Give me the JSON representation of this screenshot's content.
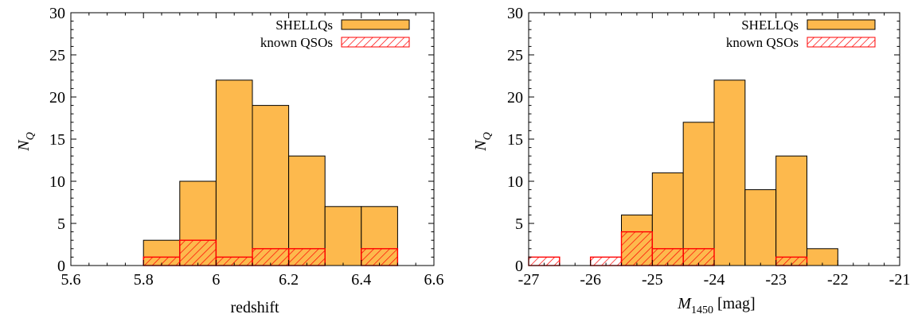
{
  "colors": {
    "shellqs_fill": "#FDB94D",
    "known_qso": "#FF0000",
    "edge": "#000000"
  },
  "chart_data": [
    {
      "type": "bar",
      "xlabel": "redshift",
      "ylabel_main": "N",
      "ylabel_sub": "Q",
      "xlim": [
        5.6,
        6.6
      ],
      "ylim": [
        0,
        30
      ],
      "xticks": [
        5.6,
        5.8,
        6,
        6.2,
        6.4,
        6.6
      ],
      "xtick_labels": [
        "5.6",
        "5.8",
        "6",
        "6.2",
        "6.4",
        "6.6"
      ],
      "yticks": [
        0,
        5,
        10,
        15,
        20,
        25,
        30
      ],
      "ytick_labels": [
        "0",
        "5",
        "10",
        "15",
        "20",
        "25",
        "30"
      ],
      "bin_width": 0.1,
      "series": [
        {
          "name": "SHELLQs",
          "style": "solid",
          "bins": [
            5.8,
            5.9,
            6.0,
            6.1,
            6.2,
            6.3,
            6.4
          ],
          "values": [
            3,
            10,
            22,
            19,
            13,
            7,
            7
          ]
        },
        {
          "name": "known QSOs",
          "style": "hatched",
          "bins": [
            5.8,
            5.9,
            6.0,
            6.1,
            6.2,
            6.4
          ],
          "values": [
            1,
            3,
            1,
            2,
            2,
            2
          ]
        }
      ],
      "legend": "top-right"
    },
    {
      "type": "bar",
      "xlabel_main": "M",
      "xlabel_sub": "1450",
      "xlabel_unit": " [mag]",
      "ylabel_main": "N",
      "ylabel_sub": "Q",
      "xlim": [
        -27,
        -21
      ],
      "ylim": [
        0,
        30
      ],
      "xticks": [
        -27,
        -26,
        -25,
        -24,
        -23,
        -22,
        -21
      ],
      "xtick_labels": [
        "-27",
        "-26",
        "-25",
        "-24",
        "-23",
        "-22",
        "-21"
      ],
      "yticks": [
        0,
        5,
        10,
        15,
        20,
        25,
        30
      ],
      "ytick_labels": [
        "0",
        "5",
        "10",
        "15",
        "20",
        "25",
        "30"
      ],
      "bin_width": 0.5,
      "series": [
        {
          "name": "SHELLQs",
          "style": "solid",
          "bins": [
            -25.5,
            -25.0,
            -24.5,
            -24.0,
            -23.5,
            -23.0,
            -22.5
          ],
          "values": [
            6,
            11,
            17,
            22,
            9,
            13,
            2
          ]
        },
        {
          "name": "known QSOs",
          "style": "hatched",
          "bins": [
            -27.0,
            -26.0,
            -25.5,
            -25.0,
            -24.5,
            -23.0
          ],
          "values": [
            1,
            1,
            4,
            2,
            2,
            1
          ]
        }
      ],
      "legend": "top-right"
    }
  ]
}
